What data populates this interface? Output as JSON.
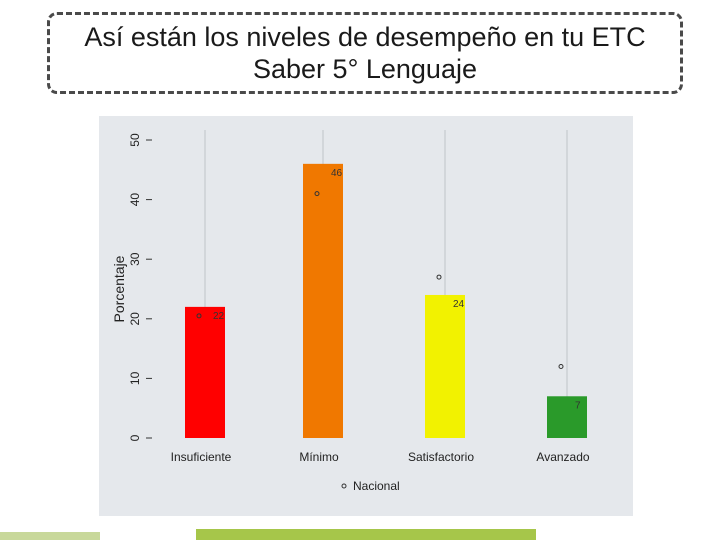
{
  "slide": {
    "title_line1": "Así están los niveles de desempeño en tu ETC",
    "title_line2": "Saber 5° Lenguaje"
  },
  "chart_data": {
    "type": "bar",
    "categories": [
      "Insuficiente",
      "Mínimo",
      "Satisfactorio",
      "Avanzado"
    ],
    "values": [
      22,
      46,
      24,
      7
    ],
    "value_labels": [
      "22",
      "46",
      "24",
      "7"
    ],
    "colors": [
      "#ff0000",
      "#f07800",
      "#f2f200",
      "#2a9a2a"
    ],
    "series": [
      {
        "name": "Nacional",
        "values": [
          20.5,
          41,
          27,
          12
        ],
        "marker": "open-circle"
      }
    ],
    "ylabel": "Porcentaje",
    "xlabel": "",
    "ylim": [
      0,
      50
    ],
    "yticks": [
      0,
      10,
      20,
      30,
      40,
      50
    ],
    "grid": "vertical at categories",
    "legend": "bottom",
    "legend_entries": [
      "Nacional"
    ],
    "background": "#e5e8ec"
  }
}
